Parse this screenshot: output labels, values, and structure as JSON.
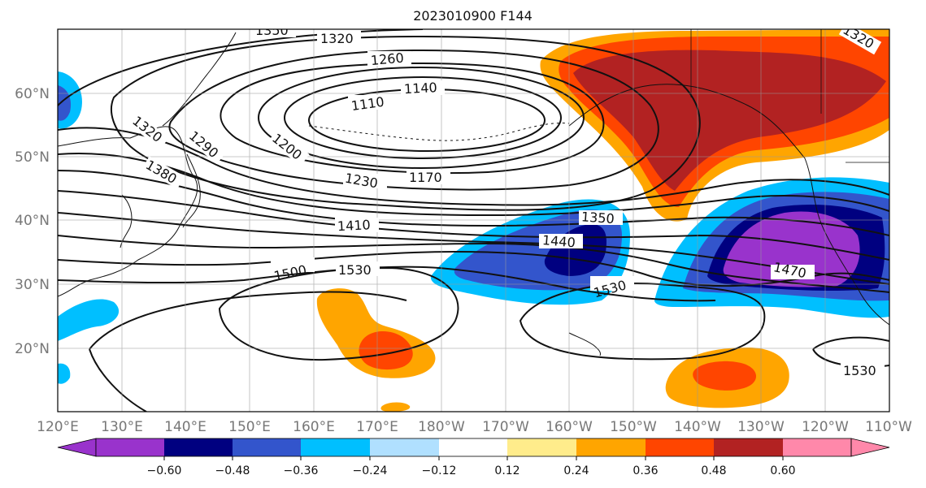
{
  "title": "2023010900 F144",
  "map": {
    "lat_ticks": [
      "60°N",
      "50°N",
      "40°N",
      "30°N",
      "20°N"
    ],
    "lon_ticks": [
      "120°E",
      "130°E",
      "140°E",
      "150°E",
      "160°E",
      "170°E",
      "180°W",
      "170°W",
      "160°W",
      "150°W",
      "140°W",
      "130°W",
      "120°W",
      "110°W"
    ],
    "contour_labels": [
      "1350",
      "1320",
      "1260",
      "1140",
      "1110",
      "1320",
      "1290",
      "1200",
      "1380",
      "1230",
      "1170",
      "1410",
      "1350",
      "1440",
      "1500",
      "1530",
      "1530",
      "1470",
      "1530",
      "1320"
    ]
  },
  "colorbar": {
    "tick_labels": [
      "−0.60",
      "−0.48",
      "−0.36",
      "−0.24",
      "−0.12",
      "0.12",
      "0.24",
      "0.36",
      "0.48",
      "0.60"
    ],
    "colors": [
      "#9933cc",
      "#000080",
      "#3355cc",
      "#00bfff",
      "#b0e0ff",
      "#ffffff",
      "#ffec8b",
      "#ffa500",
      "#ff4500",
      "#b22222",
      "#ff88aa"
    ]
  },
  "colors": {
    "purple": "#9933cc",
    "navy": "#000080",
    "royal": "#3355cc",
    "sky": "#00bfff",
    "paleblue": "#b0e0ff",
    "paleyellow": "#ffec8b",
    "orange": "#ffa500",
    "redorange": "#ff4500",
    "darkred": "#b22222",
    "pink": "#ff88aa"
  }
}
